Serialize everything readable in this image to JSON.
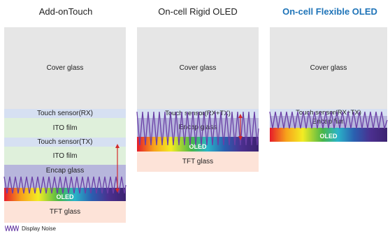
{
  "columns": [
    {
      "title": "Add-onTouch",
      "layers": {
        "cover": "Cover glass",
        "sensor_rx": "Touch sensor(RX)",
        "ito1": "ITO film",
        "sensor_tx": "Touch sensor(TX)",
        "ito2": "ITO film",
        "encap": "Encap glass",
        "oled": "OLED",
        "tft": "TFT glass"
      }
    },
    {
      "title": "On-cell Rigid OLED",
      "layers": {
        "cover": "Cover glass",
        "sensor": "Touch sensor(RX+TX)",
        "encap": "Encap glass",
        "oled": "OLED",
        "tft": "TFT glass"
      }
    },
    {
      "title": "On-cell Flexible OLED",
      "layers": {
        "cover": "Cover glass",
        "sensor": "Touch sensor(RX+TX)",
        "encap": "Encap film",
        "oled": "OLED"
      }
    }
  ],
  "legend": {
    "label": "Display Noise"
  },
  "colors": {
    "accent_title": "#1f74b8",
    "cover": "#e6e6e6",
    "sensor": "#d6e0f2",
    "ito": "#dff0db",
    "encap": "#b7b6dc",
    "tft": "#fde3d8",
    "noise": "#6a3fa6",
    "arrow": "#d42a2a"
  }
}
